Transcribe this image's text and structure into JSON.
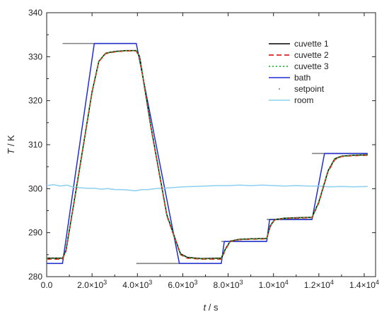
{
  "chart_data": {
    "type": "line",
    "title": "",
    "xlabel_var": "t",
    "xlabel_unit": " / s",
    "ylabel_var": "T",
    "ylabel_unit": " / K",
    "xlim": [
      0,
      14500
    ],
    "ylim": [
      280,
      340
    ],
    "xticks": [
      0,
      2000,
      4000,
      6000,
      8000,
      10000,
      12000,
      14000
    ],
    "xtick_labels": [
      {
        "base": "0.0",
        "exp": ""
      },
      {
        "base": "2.0×10",
        "exp": "3"
      },
      {
        "base": "4.0×10",
        "exp": "3"
      },
      {
        "base": "6.0×10",
        "exp": "3"
      },
      {
        "base": "8.0×10",
        "exp": "3"
      },
      {
        "base": "1.0×10",
        "exp": "4"
      },
      {
        "base": "1.2×10",
        "exp": "4"
      },
      {
        "base": "1.4×10",
        "exp": "4"
      }
    ],
    "yticks": [
      280,
      290,
      300,
      310,
      320,
      330,
      340
    ],
    "ytick_labels": [
      "280",
      "290",
      "300",
      "310",
      "320",
      "330",
      "340"
    ],
    "grid": false,
    "legend_position": "top-right",
    "series": [
      {
        "name": "setpoint",
        "color": "#808080",
        "style": "segments",
        "segments": [
          [
            [
              0,
              283
            ],
            [
              700,
              283
            ]
          ],
          [
            [
              700,
              333
            ],
            [
              3950,
              333
            ]
          ],
          [
            [
              3950,
              283
            ],
            [
              7700,
              283
            ]
          ],
          [
            [
              7700,
              288
            ],
            [
              9700,
              288
            ]
          ],
          [
            [
              9700,
              293
            ],
            [
              11700,
              293
            ]
          ],
          [
            [
              11700,
              308
            ],
            [
              14150,
              308
            ]
          ]
        ]
      },
      {
        "name": "bath",
        "color": "#1f2fd1",
        "style": "solid",
        "x": [
          0,
          700,
          2100,
          3950,
          5850,
          7700,
          7830,
          9700,
          9830,
          11700,
          12250,
          14150
        ],
        "y": [
          283,
          283,
          333,
          333,
          283,
          283,
          288,
          288,
          293,
          293,
          308,
          308
        ]
      },
      {
        "name": "room",
        "color": "#8ccff0",
        "style": "solid",
        "x": [
          0,
          300,
          600,
          900,
          1200,
          1500,
          1800,
          2100,
          2400,
          2700,
          3000,
          3300,
          3600,
          3900,
          4200,
          4500,
          4800,
          5100,
          5400,
          5700,
          6000,
          6500,
          7000,
          7500,
          8000,
          8500,
          9000,
          9500,
          10000,
          10500,
          11000,
          11500,
          12000,
          12500,
          13000,
          13500,
          14150
        ],
        "y": [
          300.7,
          300.9,
          300.6,
          300.8,
          300.3,
          300.2,
          300.1,
          300.1,
          299.9,
          300.0,
          299.8,
          299.8,
          299.7,
          299.5,
          299.8,
          299.8,
          300.0,
          300.1,
          300.2,
          300.3,
          300.4,
          300.5,
          300.6,
          300.7,
          300.7,
          300.8,
          300.7,
          300.8,
          300.7,
          300.6,
          300.7,
          300.6,
          300.6,
          300.4,
          300.5,
          300.4,
          300.5
        ]
      },
      {
        "name": "cuvette 1",
        "color": "#000000",
        "style": "solid",
        "x": [
          0,
          700,
          850,
          1400,
          2000,
          2300,
          2600,
          3000,
          3500,
          3950,
          4100,
          4600,
          5300,
          5900,
          6200,
          6800,
          7700,
          7900,
          8100,
          8500,
          9000,
          9700,
          9850,
          10050,
          10500,
          11000,
          11700,
          12000,
          12400,
          12700,
          13000,
          13500,
          14150
        ],
        "y": [
          284.2,
          284.2,
          286,
          303,
          322,
          329,
          330.8,
          331.2,
          331.4,
          331.4,
          330,
          314,
          294,
          285.2,
          284.4,
          284.1,
          284.2,
          286.5,
          288.1,
          288.5,
          288.6,
          288.7,
          291.5,
          293.0,
          293.3,
          293.4,
          293.5,
          297,
          304,
          306.8,
          307.4,
          307.6,
          307.7
        ]
      },
      {
        "name": "cuvette 2",
        "color": "#e02020",
        "style": "dashed",
        "x": [
          0,
          700,
          850,
          1400,
          2000,
          2300,
          2600,
          3000,
          3500,
          3950,
          4100,
          4600,
          5300,
          5900,
          6200,
          6800,
          7700,
          7900,
          8100,
          8500,
          9000,
          9700,
          9850,
          10050,
          10500,
          11000,
          11700,
          12000,
          12400,
          12700,
          13000,
          13500,
          14150
        ],
        "y": [
          284.0,
          284.0,
          285.8,
          302.8,
          321.8,
          328.9,
          330.7,
          331.1,
          331.3,
          331.3,
          329.8,
          313.8,
          293.8,
          285.0,
          284.2,
          284.0,
          284.0,
          286.3,
          288.0,
          288.4,
          288.5,
          288.6,
          291.3,
          292.9,
          293.2,
          293.3,
          293.4,
          296.8,
          303.8,
          306.6,
          307.3,
          307.5,
          307.6
        ]
      },
      {
        "name": "cuvette 3",
        "color": "#22c02a",
        "style": "dotted",
        "x": [
          0,
          700,
          850,
          1400,
          2000,
          2300,
          2600,
          3000,
          3500,
          3950,
          4100,
          4600,
          5300,
          5900,
          6200,
          6800,
          7700,
          7900,
          8100,
          8500,
          9000,
          9700,
          9850,
          10050,
          10500,
          11000,
          11700,
          12000,
          12400,
          12700,
          13000,
          13500,
          14150
        ],
        "y": [
          284.1,
          284.1,
          285.9,
          302.9,
          321.9,
          328.95,
          330.75,
          331.15,
          331.35,
          331.35,
          329.9,
          313.9,
          293.9,
          285.1,
          284.3,
          284.05,
          284.1,
          286.4,
          288.05,
          288.45,
          288.55,
          288.65,
          291.4,
          292.95,
          293.25,
          293.35,
          293.45,
          296.9,
          303.9,
          306.7,
          307.35,
          307.55,
          307.65
        ]
      }
    ],
    "legend": [
      {
        "label": "cuvette 1",
        "color": "#000000",
        "style": "solid"
      },
      {
        "label": "cuvette 2",
        "color": "#e02020",
        "style": "dashed"
      },
      {
        "label": "cuvette 3",
        "color": "#22c02a",
        "style": "dotted"
      },
      {
        "label": "bath",
        "color": "#1f2fd1",
        "style": "solid"
      },
      {
        "label": "setpoint",
        "color": "#808080",
        "style": "dot"
      },
      {
        "label": "room",
        "color": "#8ccff0",
        "style": "solid"
      }
    ]
  }
}
